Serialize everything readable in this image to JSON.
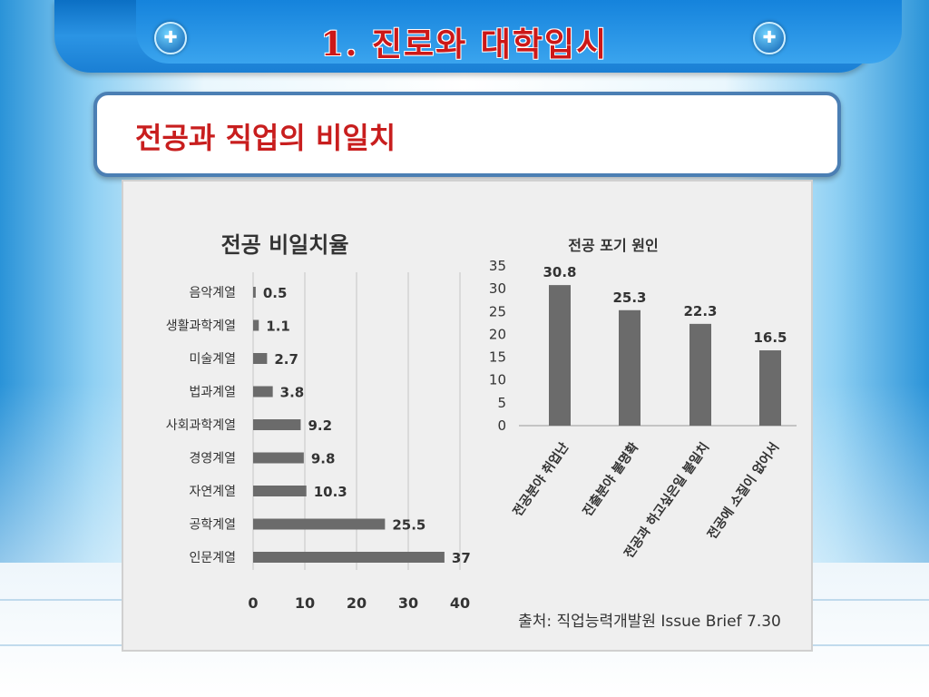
{
  "slide": {
    "title": "1. 진로와 대학입시",
    "subtitle": "전공과 직업의 비일치",
    "badge_glyph": "✚",
    "accent_color": "#cc1818",
    "bar_color": "#1a7fd4"
  },
  "chart_data": [
    {
      "type": "bar",
      "orientation": "horizontal",
      "title": "전공 비일치율",
      "categories": [
        "음악계열",
        "생활과학계열",
        "미술계열",
        "법과계열",
        "사회과학계열",
        "경영계열",
        "자연계열",
        "공학계열",
        "인문계열"
      ],
      "values": [
        0.5,
        1.1,
        2.7,
        3.8,
        9.2,
        9.8,
        10.3,
        25.5,
        37
      ],
      "value_labels": [
        "0.5",
        "1.1",
        "2.7",
        "3.8",
        "9.2",
        "9.8",
        "10.3",
        "25.5",
        "37"
      ],
      "xlim": [
        0,
        40
      ],
      "xticks": [
        "0",
        "10",
        "20",
        "30",
        "40"
      ],
      "grid": true,
      "bar_color": "#6b6b6b"
    },
    {
      "type": "bar",
      "orientation": "vertical",
      "title": "전공 포기 원인",
      "categories": [
        "전공분야 취업난",
        "진출분야 불명확",
        "전공과 하고싶은일 불일치",
        "전공에 소질이 없어서"
      ],
      "values": [
        30.8,
        25.3,
        22.3,
        16.5
      ],
      "value_labels": [
        "30.8",
        "25.3",
        "22.3",
        "16.5"
      ],
      "ylim": [
        0,
        35
      ],
      "yticks": [
        "0",
        "5",
        "10",
        "15",
        "20",
        "25",
        "30",
        "35"
      ],
      "grid": false,
      "bar_color": "#6b6b6b"
    }
  ],
  "source": "출처: 직업능력개발원 Issue Brief 7.30"
}
